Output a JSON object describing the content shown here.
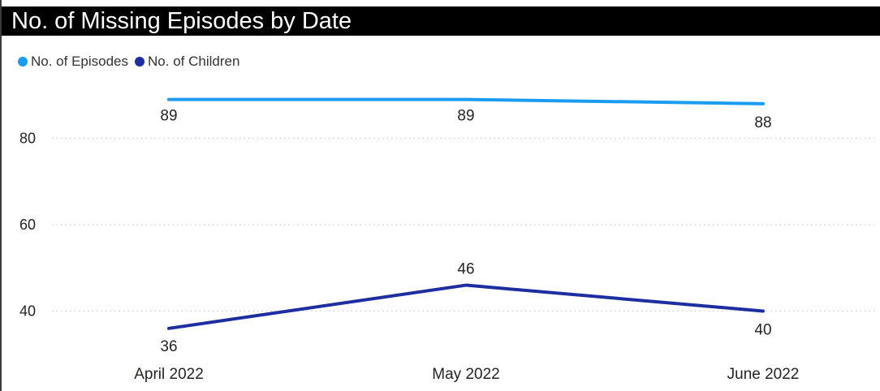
{
  "title": "No. of Missing Episodes by Date",
  "colors": {
    "episodes": "#1a9cf0",
    "children": "#1c2ea0",
    "title_bg": "#000000",
    "title_text": "#ffffff",
    "gridline": "#cccccc",
    "label_text": "#252423"
  },
  "chart_data": {
    "type": "line",
    "title": "No. of Missing Episodes by Date",
    "categories": [
      "April 2022",
      "May 2022",
      "June 2022"
    ],
    "series": [
      {
        "name": "No. of Episodes",
        "values": [
          89,
          89,
          88
        ],
        "color": "#1a9cf0"
      },
      {
        "name": "No. of Children",
        "values": [
          36,
          46,
          40
        ],
        "color": "#1c2ea0"
      }
    ],
    "y_ticks": [
      40,
      60,
      80
    ],
    "ylim": [
      32,
      96
    ],
    "grid": true,
    "legend_position": "top-left",
    "data_labels": true
  }
}
